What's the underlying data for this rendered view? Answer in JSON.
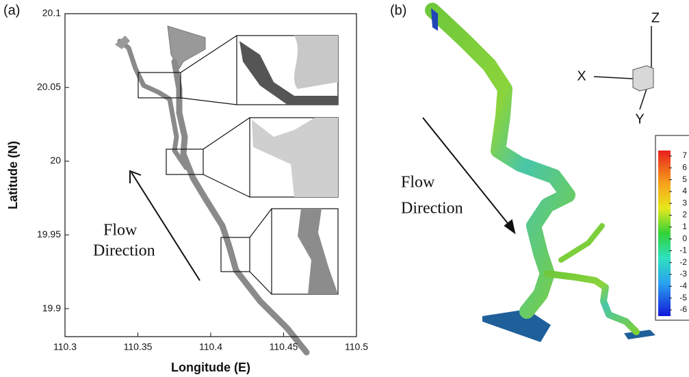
{
  "chart_data": [
    {
      "type": "map",
      "panel_label": "(a)",
      "x_label": "Longitude (E)",
      "y_label": "Latitude (N)",
      "xlim": [
        110.3,
        110.5
      ],
      "xticks": [
        110.3,
        110.35,
        110.4,
        110.45,
        110.5
      ],
      "ylim": [
        19.881,
        20.1
      ],
      "yticks": [
        19.9,
        19.95,
        20,
        20.05,
        20.1
      ],
      "annotation": [
        "Flow",
        "Direction"
      ]
    },
    {
      "type": "surface",
      "panel_label": "(b)",
      "axes_labels": [
        "X",
        "Y",
        "Z"
      ],
      "annotation": [
        "Flow",
        "Direction"
      ],
      "cticks": [
        7,
        6,
        5,
        4,
        3,
        2,
        1,
        0,
        -1,
        -2,
        -3,
        -4,
        -5,
        -6
      ]
    }
  ]
}
